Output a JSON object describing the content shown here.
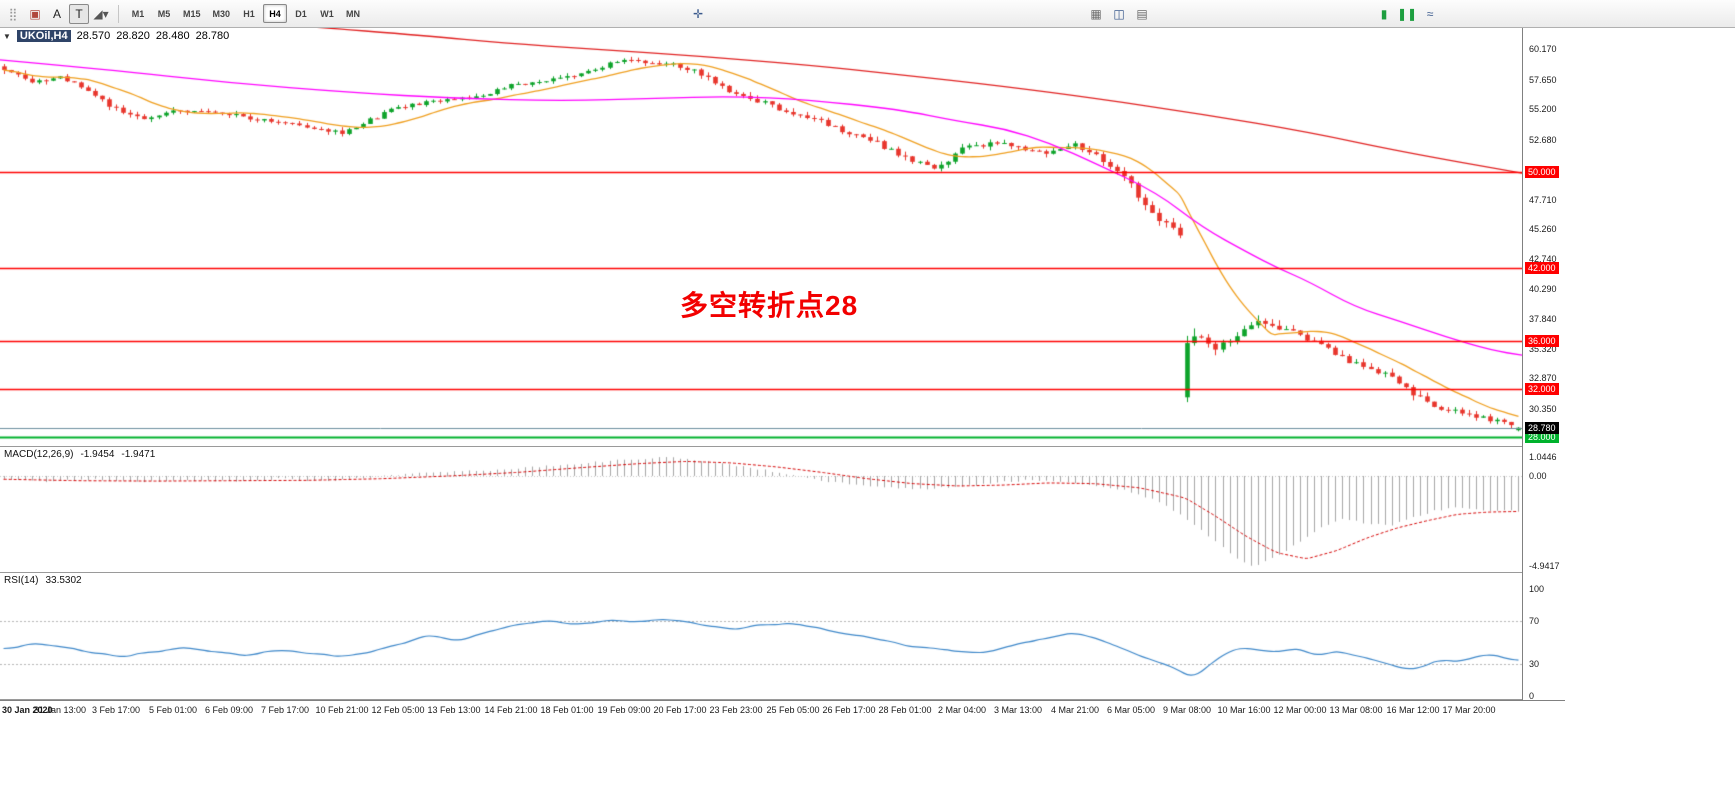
{
  "toolbar": {
    "left_icons": [
      {
        "name": "toolbars-drag-handle-icon",
        "glyph": "⣿",
        "color": "#9a9a9a"
      },
      {
        "name": "new-order-icon",
        "glyph": "▣",
        "color": "#b0463c"
      },
      {
        "name": "text-label-icon",
        "glyph": "A",
        "color": "#222222"
      },
      {
        "name": "text-tool-icon",
        "glyph": "T",
        "color": "#222222",
        "pressed": true
      },
      {
        "name": "draw-shapes-icon",
        "glyph": "◢▾",
        "color": "#555555"
      }
    ],
    "timeframes": [
      {
        "label": "M1"
      },
      {
        "label": "M5"
      },
      {
        "label": "M15"
      },
      {
        "label": "M30"
      },
      {
        "label": "H1"
      },
      {
        "label": "H4",
        "active": true
      },
      {
        "label": "D1"
      },
      {
        "label": "W1"
      },
      {
        "label": "MN"
      }
    ],
    "right_groups": [
      {
        "x": 688,
        "icons": [
          {
            "name": "crosshair-icon",
            "glyph": "✛",
            "color": "#39598c"
          }
        ]
      },
      {
        "x": 1086,
        "icons": [
          {
            "name": "tile-windows-icon",
            "glyph": "▦",
            "color": "#6a6a6a"
          },
          {
            "name": "new-chart-icon",
            "glyph": "◫",
            "color": "#39598c"
          },
          {
            "name": "chart-list-icon",
            "glyph": "▤",
            "color": "#6a6a6a"
          }
        ]
      },
      {
        "x": 1374,
        "icons": [
          {
            "name": "candlestick-chart-icon",
            "glyph": "▮",
            "color": "#1d9e3f"
          },
          {
            "name": "bar-chart-icon",
            "glyph": "❚❚",
            "color": "#1d9e3f"
          },
          {
            "name": "line-chart-icon",
            "glyph": "≈",
            "color": "#39598c"
          }
        ]
      }
    ]
  },
  "x_axis": {
    "candles_per_label": 8,
    "labels": [
      "30 Jan 2020",
      "31 Jan 13:00",
      "3 Feb 17:00",
      "5 Feb 01:00",
      "6 Feb 09:00",
      "7 Feb 17:00",
      "10 Feb 21:00",
      "12 Feb 05:00",
      "13 Feb 13:00",
      "14 Feb 21:00",
      "18 Feb 01:00",
      "19 Feb 09:00",
      "20 Feb 17:00",
      "23 Feb 23:00",
      "25 Feb 05:00",
      "26 Feb 17:00",
      "28 Feb 01:00",
      "2 Mar 04:00",
      "3 Mar 13:00",
      "4 Mar 21:00",
      "6 Mar 05:00",
      "9 Mar 08:00",
      "10 Mar 16:00",
      "12 Mar 00:00",
      "13 Mar 08:00",
      "16 Mar 12:00",
      "17 Mar 20:00"
    ]
  },
  "chart_data": [
    {
      "type": "candlestick",
      "symbol": "UKOil",
      "timeframe": "H4",
      "symbol_display": "UKOil,H4",
      "ohlc_display": {
        "open": "28.570",
        "high": "28.820",
        "low": "28.480",
        "close": "28.780"
      },
      "ylim": [
        27.26,
        61.95
      ],
      "yticks": [
        "60.170",
        "57.650",
        "55.200",
        "52.680",
        "47.710",
        "45.260",
        "42.740",
        "40.290",
        "37.840",
        "35.320",
        "32.870",
        "30.350"
      ],
      "hlines": [
        {
          "value": 50.0,
          "label": "50.000",
          "color": "#ff0000",
          "width": 1.5
        },
        {
          "value": 42.0,
          "label": "42.000",
          "color": "#ff0000",
          "width": 1.5
        },
        {
          "value": 36.0,
          "label": "36.000",
          "color": "#ff0000",
          "width": 1.5
        },
        {
          "value": 32.0,
          "label": "32.000",
          "color": "#ff0000",
          "width": 1.5
        },
        {
          "value": 28.0,
          "label": "28.000",
          "color": "#00b22d",
          "width": 2
        }
      ],
      "current_price": {
        "value": 28.78,
        "label": "28.780",
        "line_color": "#6b8e9e",
        "badge_color": "#000000"
      },
      "annotation": {
        "text": "多空转折点28",
        "color": "#f20000",
        "x_frac": 0.447,
        "y_price": 40.7
      },
      "up_color": "#0da32a",
      "down_color": "#e8352c",
      "candle_count": 216,
      "price_anchors": [
        [
          0,
          58.3,
          0.5
        ],
        [
          4,
          57.6,
          0.5
        ],
        [
          8,
          57.9,
          0.5
        ],
        [
          12,
          56.8,
          0.5
        ],
        [
          16,
          55.2,
          0.45
        ],
        [
          20,
          54.3,
          0.4
        ],
        [
          24,
          55.2,
          0.4
        ],
        [
          28,
          55.0,
          0.35
        ],
        [
          32,
          54.8,
          0.4
        ],
        [
          36,
          54.4,
          0.35
        ],
        [
          40,
          54.2,
          0.35
        ],
        [
          44,
          53.6,
          0.35
        ],
        [
          48,
          53.2,
          0.4
        ],
        [
          52,
          54.3,
          0.4
        ],
        [
          56,
          55.4,
          0.4
        ],
        [
          60,
          55.8,
          0.35
        ],
        [
          64,
          56.1,
          0.35
        ],
        [
          68,
          56.4,
          0.35
        ],
        [
          72,
          57.2,
          0.35
        ],
        [
          76,
          57.5,
          0.3
        ],
        [
          80,
          57.9,
          0.35
        ],
        [
          84,
          58.6,
          0.4
        ],
        [
          88,
          59.3,
          0.4
        ],
        [
          92,
          59.1,
          0.4
        ],
        [
          96,
          58.8,
          0.45
        ],
        [
          100,
          57.9,
          0.5
        ],
        [
          104,
          56.4,
          0.5
        ],
        [
          108,
          55.7,
          0.45
        ],
        [
          112,
          54.8,
          0.45
        ],
        [
          116,
          54.2,
          0.4
        ],
        [
          120,
          53.2,
          0.45
        ],
        [
          124,
          52.4,
          0.5
        ],
        [
          128,
          51.2,
          0.5
        ],
        [
          132,
          50.2,
          0.5
        ],
        [
          136,
          51.9,
          0.5
        ],
        [
          140,
          52.4,
          0.45
        ],
        [
          144,
          52.1,
          0.45
        ],
        [
          148,
          51.6,
          0.45
        ],
        [
          152,
          52.2,
          0.45
        ],
        [
          156,
          51.0,
          0.5
        ],
        [
          160,
          49.0,
          0.6
        ],
        [
          162,
          47.2,
          0.7
        ],
        [
          164,
          45.9,
          0.7
        ],
        [
          166,
          45.3,
          0.6
        ],
        [
          167,
          44.9,
          0.5
        ],
        [
          168,
          35.8,
          1.1
        ],
        [
          170,
          36.4,
          0.9
        ],
        [
          172,
          35.4,
          0.8
        ],
        [
          174,
          36.2,
          0.8
        ],
        [
          176,
          37.0,
          0.7
        ],
        [
          178,
          37.9,
          0.7
        ],
        [
          180,
          37.4,
          0.7
        ],
        [
          184,
          36.4,
          0.6
        ],
        [
          188,
          35.3,
          0.6
        ],
        [
          192,
          34.0,
          0.6
        ],
        [
          196,
          33.3,
          0.55
        ],
        [
          200,
          31.6,
          0.6
        ],
        [
          204,
          30.4,
          0.55
        ],
        [
          208,
          29.8,
          0.5
        ],
        [
          212,
          29.3,
          0.45
        ],
        [
          215,
          28.78,
          0.4
        ]
      ],
      "gap_candle": {
        "index": 168,
        "open": 31.3,
        "high": 36.4,
        "low": 30.9,
        "close": 35.8
      },
      "last_candle": {
        "open": 28.57,
        "high": 28.82,
        "low": 28.48,
        "close": 28.78
      },
      "moving_averages": [
        {
          "name": "fast-ma",
          "color": "#ef9f1f",
          "type": "sma",
          "period": 13
        },
        {
          "name": "medium-ma",
          "color": "#ff00ff",
          "path": [
            [
              0,
              59.3
            ],
            [
              0.07,
              58.5
            ],
            [
              0.15,
              57.4
            ],
            [
              0.23,
              56.6
            ],
            [
              0.3,
              56.1
            ],
            [
              0.37,
              55.9
            ],
            [
              0.43,
              56.1
            ],
            [
              0.48,
              56.3
            ],
            [
              0.53,
              56.0
            ],
            [
              0.59,
              55.2
            ],
            [
              0.63,
              54.2
            ],
            [
              0.66,
              53.6
            ],
            [
              0.69,
              52.4
            ],
            [
              0.72,
              50.7
            ],
            [
              0.76,
              48.3
            ],
            [
              0.79,
              45.4
            ],
            [
              0.82,
              43.3
            ],
            [
              0.84,
              42.0
            ],
            [
              0.86,
              40.9
            ],
            [
              0.89,
              38.8
            ],
            [
              0.92,
              37.6
            ],
            [
              0.95,
              36.3
            ],
            [
              0.98,
              35.2
            ],
            [
              1,
              34.8
            ]
          ]
        },
        {
          "name": "slow-ma",
          "color": "#e02020",
          "path": [
            [
              0,
              63.6
            ],
            [
              0.1,
              62.9
            ],
            [
              0.2,
              62.1
            ],
            [
              0.28,
              61.3
            ],
            [
              0.33,
              60.7
            ],
            [
              0.39,
              60.2
            ],
            [
              0.46,
              59.6
            ],
            [
              0.53,
              58.9
            ],
            [
              0.59,
              58.1
            ],
            [
              0.66,
              57.1
            ],
            [
              0.72,
              56.1
            ],
            [
              0.79,
              54.8
            ],
            [
              0.86,
              53.3
            ],
            [
              0.92,
              51.7
            ],
            [
              1,
              49.9
            ]
          ]
        }
      ]
    },
    {
      "type": "macd",
      "label": "MACD(12,26,9)",
      "values": [
        "-1.9454",
        "-1.9471"
      ],
      "yticks": [
        "1.0446",
        "0.00",
        "-4.9417"
      ],
      "ylim": [
        -5.27,
        1.59
      ],
      "histogram_color": "#a6a6a6",
      "signal_color": "#d40000",
      "histogram_anchors": [
        [
          0,
          -0.12
        ],
        [
          0.03,
          -0.3
        ],
        [
          0.06,
          -0.18
        ],
        [
          0.09,
          -0.32
        ],
        [
          0.12,
          -0.22
        ],
        [
          0.15,
          -0.3
        ],
        [
          0.18,
          -0.15
        ],
        [
          0.21,
          -0.28
        ],
        [
          0.24,
          -0.1
        ],
        [
          0.27,
          0.12
        ],
        [
          0.3,
          0.25
        ],
        [
          0.33,
          0.35
        ],
        [
          0.36,
          0.55
        ],
        [
          0.39,
          0.75
        ],
        [
          0.42,
          0.95
        ],
        [
          0.44,
          1.04
        ],
        [
          0.46,
          0.85
        ],
        [
          0.48,
          0.6
        ],
        [
          0.5,
          0.35
        ],
        [
          0.52,
          0.05
        ],
        [
          0.54,
          -0.25
        ],
        [
          0.56,
          -0.45
        ],
        [
          0.58,
          -0.6
        ],
        [
          0.6,
          -0.72
        ],
        [
          0.62,
          -0.65
        ],
        [
          0.64,
          -0.5
        ],
        [
          0.66,
          -0.32
        ],
        [
          0.68,
          -0.22
        ],
        [
          0.7,
          -0.3
        ],
        [
          0.72,
          -0.5
        ],
        [
          0.74,
          -0.8
        ],
        [
          0.76,
          -1.3
        ],
        [
          0.78,
          -2.3
        ],
        [
          0.8,
          -3.6
        ],
        [
          0.815,
          -4.6
        ],
        [
          0.825,
          -4.94
        ],
        [
          0.84,
          -4.45
        ],
        [
          0.855,
          -3.6
        ],
        [
          0.87,
          -2.8
        ],
        [
          0.885,
          -2.35
        ],
        [
          0.9,
          -2.6
        ],
        [
          0.915,
          -2.75
        ],
        [
          0.93,
          -2.3
        ],
        [
          0.945,
          -1.9
        ],
        [
          0.96,
          -1.75
        ],
        [
          0.975,
          -1.85
        ],
        [
          1,
          -1.945
        ]
      ],
      "signal_anchors": [
        [
          0,
          -0.18
        ],
        [
          0.05,
          -0.26
        ],
        [
          0.1,
          -0.28
        ],
        [
          0.15,
          -0.26
        ],
        [
          0.2,
          -0.24
        ],
        [
          0.25,
          -0.15
        ],
        [
          0.3,
          0.02
        ],
        [
          0.34,
          0.2
        ],
        [
          0.38,
          0.45
        ],
        [
          0.42,
          0.68
        ],
        [
          0.45,
          0.8
        ],
        [
          0.48,
          0.72
        ],
        [
          0.51,
          0.5
        ],
        [
          0.54,
          0.2
        ],
        [
          0.57,
          -0.15
        ],
        [
          0.6,
          -0.42
        ],
        [
          0.63,
          -0.55
        ],
        [
          0.66,
          -0.5
        ],
        [
          0.69,
          -0.38
        ],
        [
          0.72,
          -0.42
        ],
        [
          0.75,
          -0.65
        ],
        [
          0.78,
          -1.2
        ],
        [
          0.8,
          -2.2
        ],
        [
          0.82,
          -3.3
        ],
        [
          0.84,
          -4.2
        ],
        [
          0.86,
          -4.55
        ],
        [
          0.88,
          -4.1
        ],
        [
          0.9,
          -3.4
        ],
        [
          0.92,
          -2.85
        ],
        [
          0.94,
          -2.45
        ],
        [
          0.96,
          -2.1
        ],
        [
          0.98,
          -1.98
        ],
        [
          1,
          -1.947
        ]
      ]
    },
    {
      "type": "rsi",
      "label": "RSI(14)",
      "value": "33.5302",
      "yticks": [
        "100",
        "70",
        "30",
        "0"
      ],
      "levels": [
        70,
        30
      ],
      "line_color": "#3d87c9",
      "anchors": [
        [
          0,
          44
        ],
        [
          0.02,
          50
        ],
        [
          0.04,
          45
        ],
        [
          0.06,
          40
        ],
        [
          0.08,
          36
        ],
        [
          0.1,
          42
        ],
        [
          0.12,
          45
        ],
        [
          0.14,
          42
        ],
        [
          0.16,
          38
        ],
        [
          0.18,
          43
        ],
        [
          0.2,
          40
        ],
        [
          0.22,
          36
        ],
        [
          0.24,
          40
        ],
        [
          0.26,
          48
        ],
        [
          0.28,
          57
        ],
        [
          0.3,
          52
        ],
        [
          0.32,
          60
        ],
        [
          0.34,
          66
        ],
        [
          0.36,
          70
        ],
        [
          0.38,
          67
        ],
        [
          0.4,
          71
        ],
        [
          0.42,
          69
        ],
        [
          0.44,
          72
        ],
        [
          0.46,
          67
        ],
        [
          0.48,
          62
        ],
        [
          0.5,
          66
        ],
        [
          0.52,
          68
        ],
        [
          0.54,
          63
        ],
        [
          0.56,
          58
        ],
        [
          0.58,
          52
        ],
        [
          0.6,
          47
        ],
        [
          0.62,
          44
        ],
        [
          0.64,
          40
        ],
        [
          0.66,
          45
        ],
        [
          0.68,
          52
        ],
        [
          0.7,
          57
        ],
        [
          0.71,
          60
        ],
        [
          0.72,
          55
        ],
        [
          0.73,
          50
        ],
        [
          0.74,
          44
        ],
        [
          0.75,
          38
        ],
        [
          0.76,
          33
        ],
        [
          0.77,
          28
        ],
        [
          0.78,
          20
        ],
        [
          0.785,
          16
        ],
        [
          0.79,
          22
        ],
        [
          0.8,
          35
        ],
        [
          0.81,
          42
        ],
        [
          0.82,
          46
        ],
        [
          0.83,
          43
        ],
        [
          0.84,
          40
        ],
        [
          0.85,
          44
        ],
        [
          0.86,
          41
        ],
        [
          0.87,
          38
        ],
        [
          0.88,
          42
        ],
        [
          0.89,
          39
        ],
        [
          0.9,
          35
        ],
        [
          0.91,
          31
        ],
        [
          0.92,
          27
        ],
        [
          0.93,
          24
        ],
        [
          0.94,
          30
        ],
        [
          0.95,
          34
        ],
        [
          0.96,
          31
        ],
        [
          0.97,
          36
        ],
        [
          0.98,
          39
        ],
        [
          0.99,
          36
        ],
        [
          1,
          33.53
        ]
      ]
    }
  ]
}
